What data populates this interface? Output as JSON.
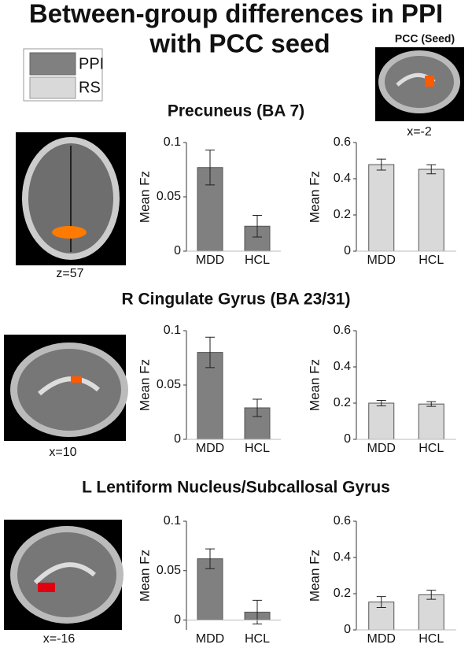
{
  "title": [
    "Between-group differences in PPI",
    "with PCC seed"
  ],
  "legend": [
    {
      "label": "PPI",
      "color": "#808080"
    },
    {
      "label": "RS",
      "color": "#d9d9d9"
    }
  ],
  "seed": {
    "label": "PCC (Seed)",
    "coord": "x=-2"
  },
  "regions": [
    {
      "title": "Precuneus (BA 7)",
      "coord": "z=57"
    },
    {
      "title": "R Cingulate Gyrus (BA 23/31)",
      "coord": "x=10"
    },
    {
      "title": "L Lentiform Nucleus/Subcallosal Gyrus",
      "coord": "x=-16"
    }
  ],
  "chart_data": [
    {
      "type": "bar",
      "ylabel": "Mean Fz",
      "categories": [
        "MDD",
        "HCL"
      ],
      "values": [
        0.077,
        0.023
      ],
      "errors": [
        0.016,
        0.01
      ],
      "color": "#808080",
      "ylim": [
        0,
        0.1
      ],
      "yticks": [
        0,
        0.05,
        0.1
      ]
    },
    {
      "type": "bar",
      "ylabel": "Mean Fz",
      "categories": [
        "MDD",
        "HCL"
      ],
      "values": [
        0.478,
        0.452
      ],
      "errors": [
        0.03,
        0.025
      ],
      "color": "#d9d9d9",
      "ylim": [
        0,
        0.6
      ],
      "yticks": [
        0,
        0.2,
        0.4,
        0.6
      ]
    },
    {
      "type": "bar",
      "ylabel": "Mean Fz",
      "categories": [
        "MDD",
        "HCL"
      ],
      "values": [
        0.08,
        0.029
      ],
      "errors": [
        0.014,
        0.008
      ],
      "color": "#808080",
      "ylim": [
        0,
        0.1
      ],
      "yticks": [
        0,
        0.05,
        0.1
      ]
    },
    {
      "type": "bar",
      "ylabel": "Mean Fz",
      "categories": [
        "MDD",
        "HCL"
      ],
      "values": [
        0.2,
        0.195
      ],
      "errors": [
        0.015,
        0.013
      ],
      "color": "#d9d9d9",
      "ylim": [
        0,
        0.6
      ],
      "yticks": [
        0,
        0.2,
        0.4,
        0.6
      ]
    },
    {
      "type": "bar",
      "ylabel": "Mean Fz",
      "categories": [
        "MDD",
        "HCL"
      ],
      "values": [
        0.062,
        0.008
      ],
      "errors": [
        0.01,
        0.012
      ],
      "color": "#808080",
      "ylim": [
        -0.01,
        0.1
      ],
      "yticks": [
        0,
        0.05,
        0.1
      ]
    },
    {
      "type": "bar",
      "ylabel": "Mean Fz",
      "categories": [
        "MDD",
        "HCL"
      ],
      "values": [
        0.154,
        0.194
      ],
      "errors": [
        0.03,
        0.025
      ],
      "color": "#d9d9d9",
      "ylim": [
        0,
        0.6
      ],
      "yticks": [
        0,
        0.2,
        0.4,
        0.6
      ]
    }
  ]
}
